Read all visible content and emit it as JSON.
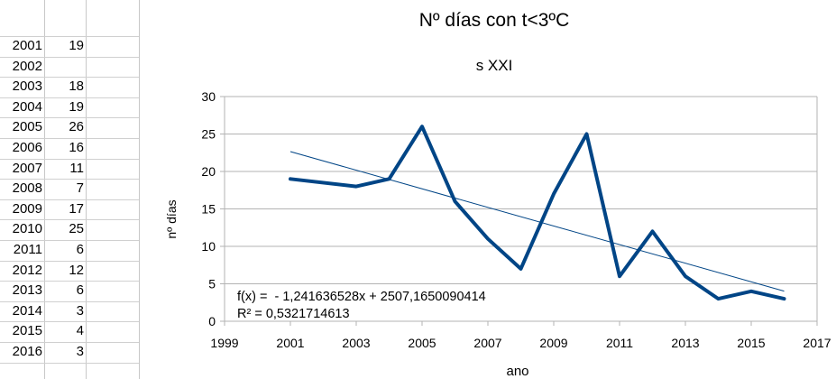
{
  "chart_data": {
    "type": "line",
    "title": "Nº días con t<3ºC",
    "subtitle": "s XXI",
    "xlabel": "ano",
    "ylabel": "nº días",
    "xlim": [
      1999,
      2017
    ],
    "ylim": [
      0,
      30
    ],
    "x_ticks": [
      "1999",
      "2001",
      "2003",
      "2005",
      "2007",
      "2009",
      "2011",
      "2013",
      "2015",
      "2017"
    ],
    "y_ticks": [
      "0",
      "5",
      "10",
      "15",
      "20",
      "25",
      "30"
    ],
    "grid": "horizontal",
    "legend": "none",
    "series": [
      {
        "color": "#004586",
        "points": [
          [
            2001,
            19
          ],
          [
            2003,
            18
          ],
          [
            2004,
            19
          ],
          [
            2005,
            26
          ],
          [
            2006,
            16
          ],
          [
            2007,
            11
          ],
          [
            2008,
            7
          ],
          [
            2009,
            17
          ],
          [
            2010,
            25
          ],
          [
            2011,
            6
          ],
          [
            2012,
            12
          ],
          [
            2013,
            6
          ],
          [
            2014,
            3
          ],
          [
            2015,
            4
          ],
          [
            2016,
            3
          ]
        ]
      }
    ],
    "trendline": {
      "type": "linear",
      "slope": -1.241636528,
      "intercept": 2507.1650090414,
      "x_range": [
        2001,
        2016
      ],
      "color": "#004586",
      "equation_label": "f(x) =  - 1,241636528x + 2507,1650090414",
      "r2_label": "R² = 0,5321714613"
    }
  },
  "sheet": {
    "rows": [
      {
        "year": "2001",
        "value": "19"
      },
      {
        "year": "2002",
        "value": ""
      },
      {
        "year": "2003",
        "value": "18"
      },
      {
        "year": "2004",
        "value": "19"
      },
      {
        "year": "2005",
        "value": "26"
      },
      {
        "year": "2006",
        "value": "16"
      },
      {
        "year": "2007",
        "value": "11"
      },
      {
        "year": "2008",
        "value": "7"
      },
      {
        "year": "2009",
        "value": "17"
      },
      {
        "year": "2010",
        "value": "25"
      },
      {
        "year": "2011",
        "value": "6"
      },
      {
        "year": "2012",
        "value": "12"
      },
      {
        "year": "2013",
        "value": "6"
      },
      {
        "year": "2014",
        "value": "3"
      },
      {
        "year": "2015",
        "value": "4"
      },
      {
        "year": "2016",
        "value": "3"
      }
    ]
  }
}
